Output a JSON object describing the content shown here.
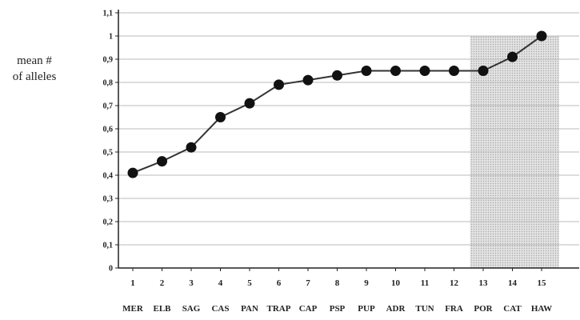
{
  "chart_data": {
    "type": "line",
    "ylabel": "mean #\nof alleles",
    "ylim": [
      0,
      1.1
    ],
    "yticks": [
      "0",
      "0,1",
      "0,2",
      "0,3",
      "0,4",
      "0,5",
      "0,6",
      "0,7",
      "0,8",
      "0,9",
      "1",
      "1,1"
    ],
    "x": [
      "1",
      "2",
      "3",
      "4",
      "5",
      "6",
      "7",
      "8",
      "9",
      "10",
      "11",
      "12",
      "13",
      "14",
      "15"
    ],
    "categories": [
      "MER",
      "ELB",
      "SAG",
      "CAS",
      "PAN",
      "TRAP",
      "CAP",
      "PSP",
      "PUP",
      "ADR",
      "TUN",
      "FRA",
      "POR",
      "CAT",
      "HAW"
    ],
    "values": [
      0.41,
      0.46,
      0.52,
      0.65,
      0.71,
      0.79,
      0.81,
      0.83,
      0.85,
      0.85,
      0.85,
      0.85,
      0.85,
      0.91,
      1.0
    ],
    "grid": true,
    "shaded_range": [
      13,
      15
    ],
    "colors": {
      "line": "#333333",
      "marker": "#111111",
      "grid": "#bbbbbb",
      "shade": "#d9d9d9"
    }
  }
}
